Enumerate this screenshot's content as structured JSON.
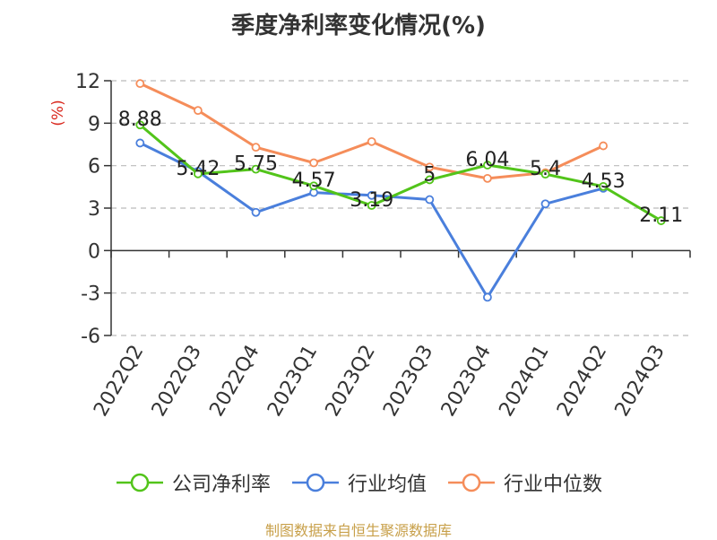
{
  "chart_data": {
    "type": "line",
    "title": "季度净利率变化情况(%)",
    "ylabel": "(%)",
    "categories": [
      "2022Q2",
      "2022Q3",
      "2022Q4",
      "2023Q1",
      "2023Q2",
      "2023Q3",
      "2023Q4",
      "2024Q1",
      "2024Q2",
      "2024Q3"
    ],
    "ylim": [
      -6,
      12
    ],
    "yticks": [
      -6,
      -3,
      0,
      3,
      6,
      9,
      12
    ],
    "grid": true,
    "legend_position": "bottom",
    "series": [
      {
        "name": "公司净利率",
        "color": "#52c41a",
        "values": [
          8.88,
          5.42,
          5.75,
          4.57,
          3.19,
          5,
          6.04,
          5.4,
          4.53,
          2.11
        ],
        "labels": true
      },
      {
        "name": "行业均值",
        "color": "#4a7fdc",
        "values": [
          7.6,
          5.6,
          2.7,
          4.1,
          3.9,
          3.6,
          -3.3,
          3.3,
          4.4,
          null
        ],
        "labels": false
      },
      {
        "name": "行业中位数",
        "color": "#f58d5a",
        "values": [
          11.8,
          9.9,
          7.3,
          6.2,
          7.7,
          5.9,
          5.1,
          5.5,
          7.4,
          null
        ],
        "labels": false
      }
    ]
  },
  "source": "制图数据来自恒生聚源数据库"
}
